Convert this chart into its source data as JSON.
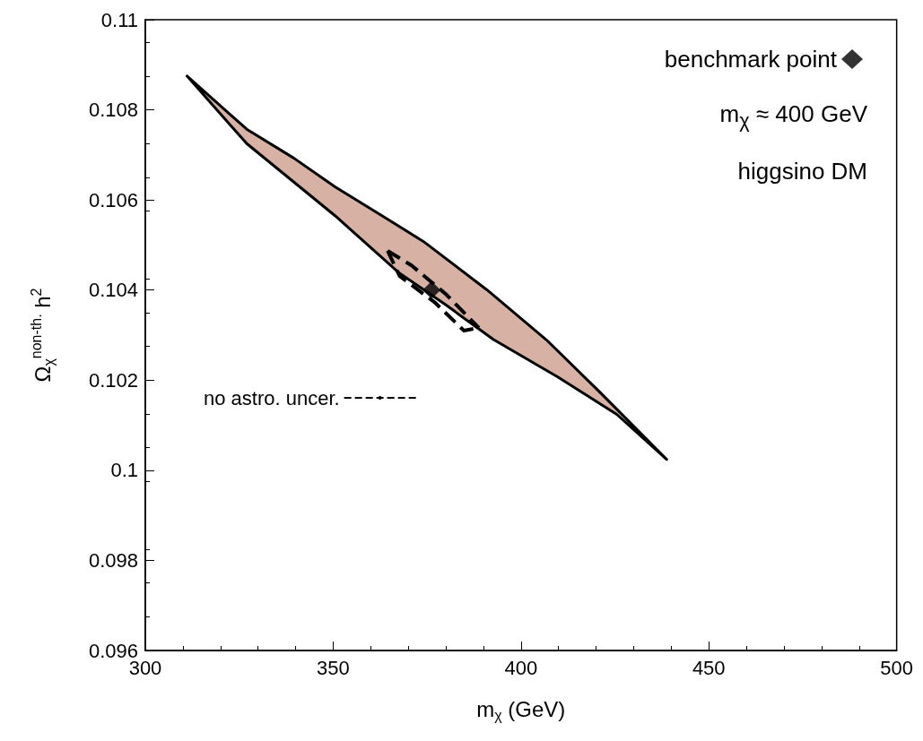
{
  "chart_data": {
    "type": "area",
    "xlabel": "m$_{χ}$ (GeV)",
    "ylabel": "Ω$_{χ}$$^{non-th.}$ h$^{2}$",
    "xlim": [
      300,
      500
    ],
    "xticks": [
      300,
      350,
      400,
      450,
      500
    ],
    "ylim": [
      0.096,
      0.11
    ],
    "yticks": [
      0.096,
      0.098,
      0.1,
      0.102,
      0.104,
      0.106,
      0.108,
      0.11
    ],
    "grid": false,
    "legend": "top right",
    "annotations": [
      "m$_{χ}$ ≈ 400 GeV",
      "higgsino DM"
    ],
    "series": [
      {
        "color": "#d7b1a3",
        "x": [
          311.1,
          327,
          339.5,
          350.5,
          363,
          374,
          391,
          406.7,
          420.8,
          438.8,
          425.5,
          409.8,
          392.7,
          380,
          367.7,
          350.5,
          327,
          311.1
        ],
        "values": [
          0.10875,
          0.10757,
          0.10693,
          0.10629,
          0.10565,
          0.10508,
          0.104,
          0.1029,
          0.10175,
          0.10024,
          0.10124,
          0.10207,
          0.1029,
          0.10367,
          0.10437,
          0.10565,
          0.10725,
          0.10875
        ]
      },
      {
        "type": "line",
        "name": "no astro. uncer.",
        "color": "#000000",
        "line_style": "dashed",
        "x": [
          364.5,
          370.8,
          380,
          388.8
        ],
        "values": [
          0.10487,
          0.10455,
          0.10391,
          0.10316
        ]
      },
      {
        "type": "line",
        "color": "#000000",
        "line_style": "dashed",
        "x": [
          364.5,
          367.7,
          377,
          384.8,
          388.8
        ],
        "values": [
          0.10487,
          0.10431,
          0.10373,
          0.1031,
          0.10316
        ]
      },
      {
        "type": "scatter",
        "name": "benchmark point",
        "color": "#000000",
        "marker": "diamond",
        "x": [
          376.2
        ],
        "values": [
          0.104
        ]
      }
    ]
  }
}
